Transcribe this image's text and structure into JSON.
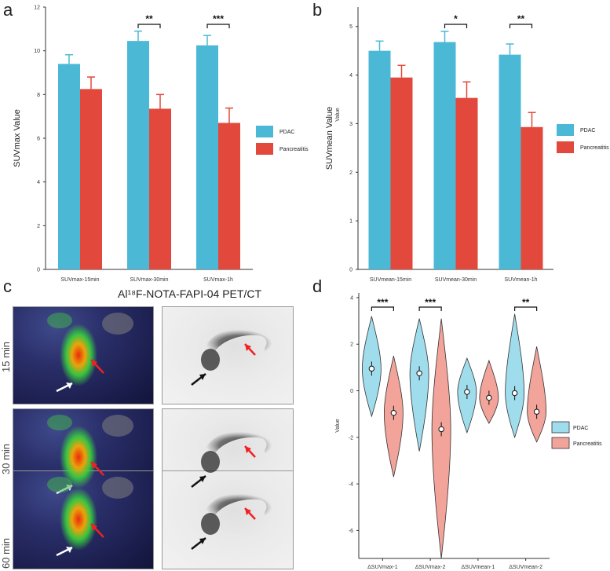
{
  "panels": {
    "a": "a",
    "b": "b",
    "c": "c",
    "d": "d"
  },
  "colors": {
    "pdac": "#4bb8d6",
    "pancreatitis": "#e2483b",
    "violin_pdac": "#9fdcec",
    "violin_panc": "#f2a39a"
  },
  "chart_data": [
    {
      "type": "bar",
      "panel": "a",
      "categories": [
        "SUVmax-15min",
        "SUVmax-30min",
        "SUVmax-1h"
      ],
      "series": [
        {
          "name": "PDAC",
          "values": [
            9.4,
            10.45,
            10.25
          ],
          "errors": [
            0.42,
            0.45,
            0.45
          ]
        },
        {
          "name": "Pancreatitis",
          "values": [
            8.25,
            7.35,
            6.7
          ],
          "errors": [
            0.55,
            0.65,
            0.68
          ]
        }
      ],
      "ylabel": "SUVmax Value",
      "ylim": [
        0,
        12
      ],
      "yticks": [
        0,
        2,
        4,
        6,
        8,
        10,
        12
      ],
      "significance": [
        "",
        "**",
        "***"
      ],
      "legend": "right"
    },
    {
      "type": "bar",
      "panel": "b",
      "categories": [
        "SUVmean-15min",
        "SUVmean-30min",
        "SUVmean-1h"
      ],
      "series": [
        {
          "name": "PDAC",
          "values": [
            4.5,
            4.68,
            4.42
          ],
          "errors": [
            0.2,
            0.22,
            0.22
          ]
        },
        {
          "name": "Pancreatitis",
          "values": [
            3.95,
            3.53,
            2.93
          ],
          "errors": [
            0.25,
            0.33,
            0.3
          ]
        }
      ],
      "ylabel": "SUVmean Value",
      "ylabel_overlap": "Value",
      "ylim": [
        0,
        5.4
      ],
      "yticks": [
        0,
        1,
        2,
        3,
        4,
        5
      ],
      "significance": [
        "",
        "*",
        "**"
      ],
      "legend": "right"
    },
    {
      "type": "violin",
      "panel": "d",
      "categories": [
        "ΔSUVmax-1",
        "ΔSUVmax-2",
        "ΔSUVmean-1",
        "ΔSUVmean-2"
      ],
      "series": [
        {
          "name": "PDAC",
          "means": [
            0.95,
            0.75,
            -0.05,
            -0.1
          ],
          "mins": [
            -1.1,
            -2.6,
            -1.8,
            -2.0
          ],
          "maxs": [
            3.2,
            3.1,
            1.4,
            3.3
          ]
        },
        {
          "name": "Pancreatitis",
          "means": [
            -0.95,
            -1.65,
            -0.3,
            -0.9
          ],
          "mins": [
            -3.7,
            -7.2,
            -1.4,
            -2.2
          ],
          "maxs": [
            1.5,
            3.1,
            1.3,
            1.9
          ]
        }
      ],
      "ylabel": "Value",
      "ylim": [
        -7.2,
        4.2
      ],
      "yticks": [
        -6,
        -4,
        -2,
        0,
        2,
        4
      ],
      "significance": [
        "***",
        "***",
        "",
        "**"
      ],
      "legend": "right"
    }
  ],
  "imaging": {
    "title": "Al¹⁸F-NOTA-FAPI-04 PET/CT",
    "rows": [
      "15 min",
      "30 min",
      "60 min"
    ]
  }
}
